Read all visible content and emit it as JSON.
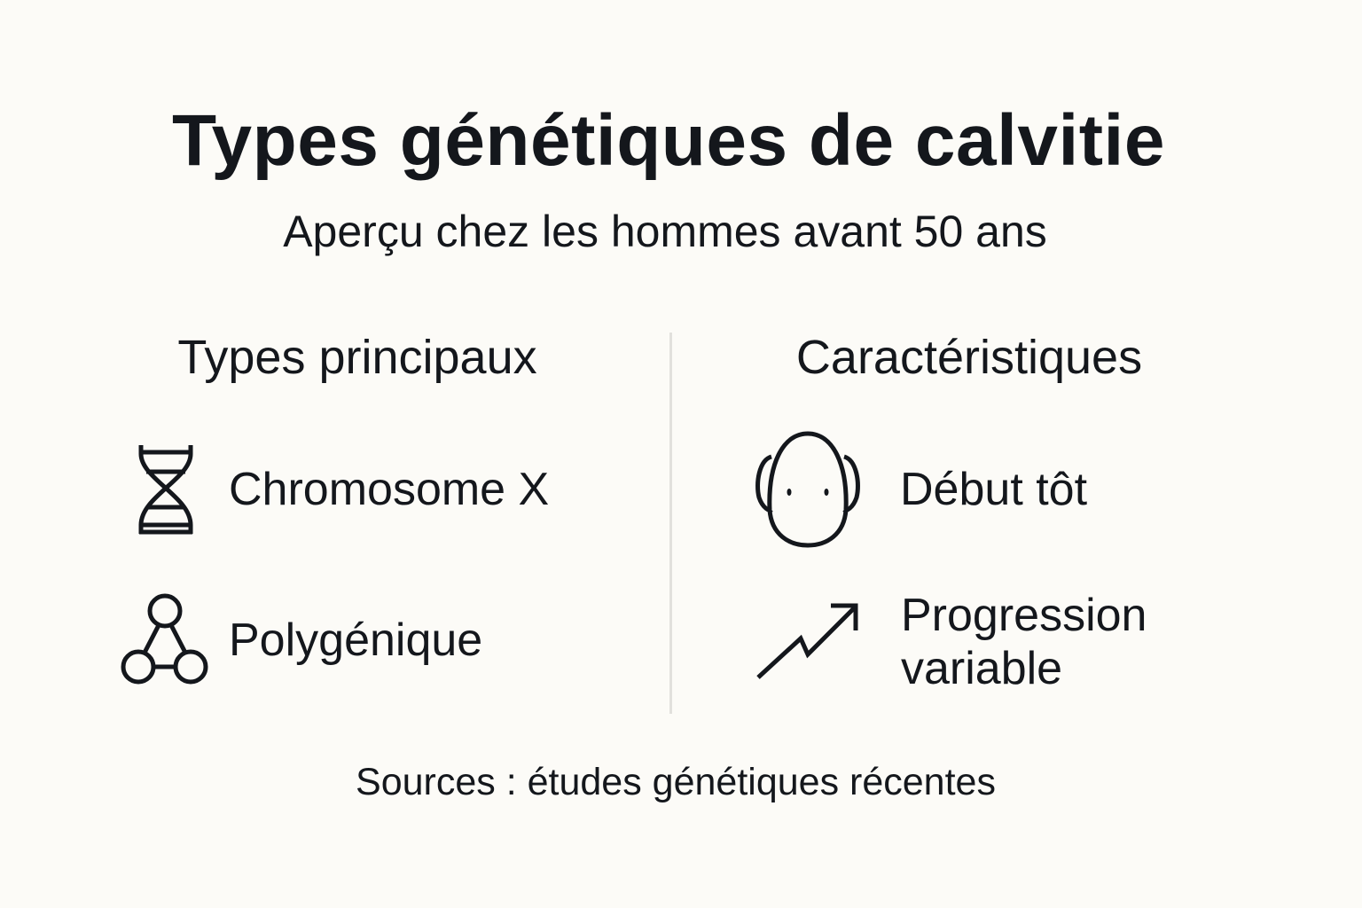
{
  "title": "Types génétiques de calvitie",
  "subtitle": "Aperçu chez les hommes avant 50 ans",
  "left_column": {
    "heading": "Types principaux",
    "items": [
      {
        "label": "Chromosome X",
        "icon": "dna-icon"
      },
      {
        "label": "Polygénique",
        "icon": "network-nodes-icon"
      }
    ]
  },
  "right_column": {
    "heading": "Caractéristiques",
    "items": [
      {
        "label": "Début tôt",
        "icon": "bald-head-icon"
      },
      {
        "label_line1": "Progression",
        "label_line2": "variable",
        "icon": "trend-up-arrow-icon"
      }
    ]
  },
  "sources": "Sources : études génétiques récentes",
  "colors": {
    "background": "#fcfbf7",
    "text": "#14171c",
    "divider": "#e2e1dd"
  }
}
